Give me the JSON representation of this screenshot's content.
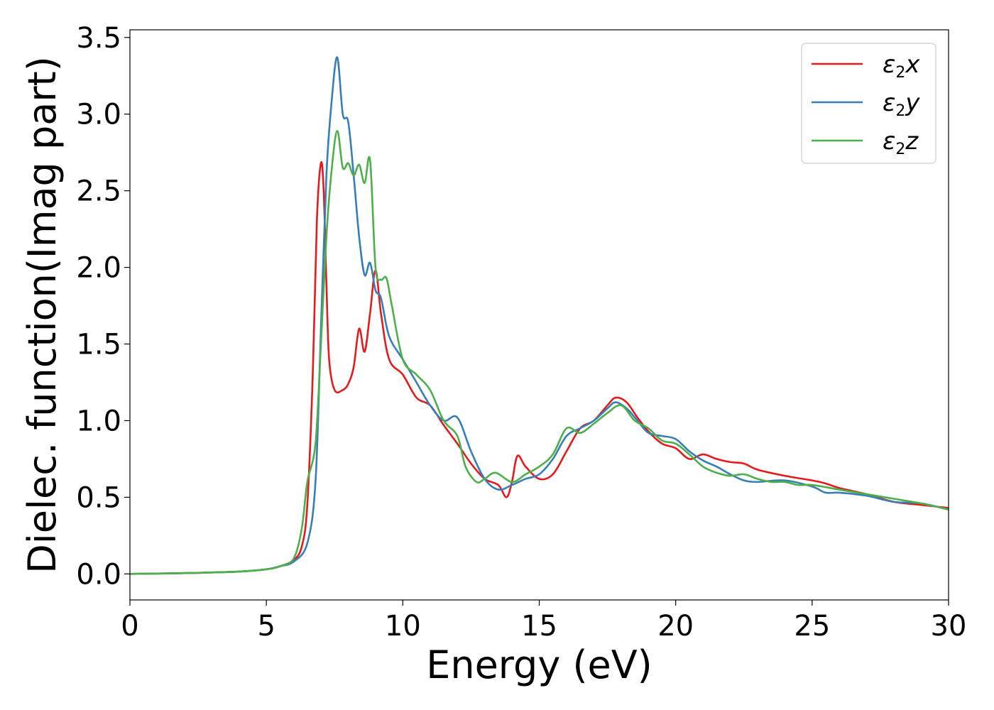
{
  "chart_data": {
    "type": "line",
    "xlabel": "Energy (eV)",
    "ylabel": "Dielec. function(Imag part)",
    "xlim": [
      0,
      30
    ],
    "ylim": [
      -0.17,
      3.55
    ],
    "xticks": [
      0,
      5,
      10,
      15,
      20,
      25,
      30
    ],
    "xtick_labels": [
      "0",
      "5",
      "10",
      "15",
      "20",
      "25",
      "30"
    ],
    "yticks": [
      0.0,
      0.5,
      1.0,
      1.5,
      2.0,
      2.5,
      3.0,
      3.5
    ],
    "ytick_labels": [
      "0.0",
      "0.5",
      "1.0",
      "1.5",
      "2.0",
      "2.5",
      "3.0",
      "3.5"
    ],
    "grid": false,
    "legend_position": "top-right",
    "series": [
      {
        "name": "ε2x",
        "legend_base": "ε",
        "legend_sub": "2",
        "legend_tail": "x",
        "color": "#e41a1c",
        "x": [
          0,
          2,
          4,
          5,
          5.5,
          6,
          6.3,
          6.5,
          6.7,
          6.85,
          7.0,
          7.1,
          7.2,
          7.3,
          7.5,
          7.8,
          8.0,
          8.2,
          8.4,
          8.6,
          8.8,
          9.0,
          9.2,
          9.5,
          10.0,
          10.5,
          11.0,
          11.5,
          12.0,
          12.5,
          13.0,
          13.5,
          13.8,
          14.0,
          14.2,
          14.5,
          15.0,
          15.5,
          16.0,
          16.5,
          17.0,
          17.5,
          17.8,
          18.2,
          18.6,
          19.0,
          19.5,
          20.0,
          20.5,
          21.0,
          21.5,
          22.0,
          22.5,
          23.0,
          24.0,
          25.0,
          25.5,
          26.0,
          27.0,
          28.0,
          29.0,
          30.0
        ],
        "y": [
          0.0,
          0.005,
          0.015,
          0.03,
          0.05,
          0.09,
          0.18,
          0.45,
          1.3,
          2.3,
          2.68,
          2.5,
          1.9,
          1.4,
          1.2,
          1.2,
          1.24,
          1.35,
          1.6,
          1.45,
          1.7,
          1.98,
          1.7,
          1.4,
          1.3,
          1.15,
          1.1,
          0.97,
          0.85,
          0.72,
          0.62,
          0.58,
          0.5,
          0.6,
          0.77,
          0.7,
          0.62,
          0.65,
          0.8,
          0.95,
          1.0,
          1.1,
          1.15,
          1.12,
          1.02,
          0.93,
          0.85,
          0.82,
          0.75,
          0.78,
          0.75,
          0.73,
          0.72,
          0.68,
          0.64,
          0.61,
          0.59,
          0.56,
          0.52,
          0.47,
          0.45,
          0.43
        ]
      },
      {
        "name": "ε2y",
        "legend_base": "ε",
        "legend_sub": "2",
        "legend_tail": "y",
        "color": "#377eb8",
        "x": [
          0,
          2,
          4,
          5,
          5.5,
          6,
          6.5,
          6.8,
          7.0,
          7.2,
          7.4,
          7.6,
          7.8,
          8.0,
          8.2,
          8.4,
          8.6,
          8.8,
          9.0,
          9.2,
          9.5,
          10.0,
          10.5,
          11.0,
          11.5,
          12.0,
          12.5,
          13.0,
          13.5,
          14.0,
          14.5,
          15.0,
          15.5,
          16.0,
          16.5,
          17.0,
          17.5,
          17.8,
          18.2,
          18.6,
          19.0,
          19.5,
          20.0,
          20.5,
          21.0,
          21.5,
          22.0,
          22.5,
          23.0,
          24.0,
          25.0,
          25.5,
          26.0,
          27.0,
          28.0,
          29.0,
          30.0
        ],
        "y": [
          0.0,
          0.005,
          0.015,
          0.03,
          0.05,
          0.08,
          0.2,
          0.6,
          1.6,
          2.6,
          3.1,
          3.37,
          3.0,
          2.95,
          2.6,
          2.2,
          1.95,
          2.03,
          1.85,
          1.8,
          1.55,
          1.4,
          1.25,
          1.1,
          1.0,
          1.02,
          0.8,
          0.62,
          0.55,
          0.58,
          0.62,
          0.65,
          0.75,
          0.9,
          0.95,
          1.0,
          1.08,
          1.12,
          1.08,
          1.0,
          0.92,
          0.9,
          0.88,
          0.8,
          0.74,
          0.7,
          0.65,
          0.61,
          0.6,
          0.61,
          0.57,
          0.53,
          0.53,
          0.51,
          0.47,
          0.46,
          0.42
        ]
      },
      {
        "name": "ε2z",
        "legend_base": "ε",
        "legend_sub": "2",
        "legend_tail": "z",
        "color": "#4daf4a",
        "x": [
          0,
          2,
          4,
          5,
          5.5,
          6,
          6.3,
          6.5,
          6.8,
          7.0,
          7.2,
          7.4,
          7.6,
          7.8,
          8.0,
          8.2,
          8.4,
          8.6,
          8.8,
          9.0,
          9.2,
          9.4,
          9.6,
          10.0,
          10.5,
          11.0,
          11.5,
          12.0,
          12.3,
          12.7,
          13.0,
          13.4,
          14.0,
          14.5,
          15.0,
          15.5,
          16.0,
          16.5,
          17.0,
          17.5,
          18.0,
          18.5,
          19.0,
          19.5,
          20.0,
          20.5,
          21.0,
          21.5,
          22.0,
          22.5,
          23.0,
          23.5,
          24.0,
          24.5,
          25.0,
          26.0,
          27.0,
          28.0,
          29.0,
          30.0
        ],
        "y": [
          0.0,
          0.005,
          0.015,
          0.03,
          0.05,
          0.1,
          0.3,
          0.6,
          0.85,
          1.5,
          2.2,
          2.65,
          2.89,
          2.65,
          2.68,
          2.6,
          2.67,
          2.55,
          2.7,
          2.0,
          1.92,
          1.93,
          1.75,
          1.4,
          1.3,
          1.2,
          1.0,
          0.9,
          0.7,
          0.6,
          0.62,
          0.66,
          0.6,
          0.65,
          0.7,
          0.78,
          0.95,
          0.92,
          0.98,
          1.05,
          1.1,
          1.0,
          0.95,
          0.87,
          0.85,
          0.78,
          0.7,
          0.66,
          0.64,
          0.65,
          0.62,
          0.6,
          0.6,
          0.58,
          0.58,
          0.55,
          0.52,
          0.49,
          0.46,
          0.42
        ]
      }
    ]
  }
}
